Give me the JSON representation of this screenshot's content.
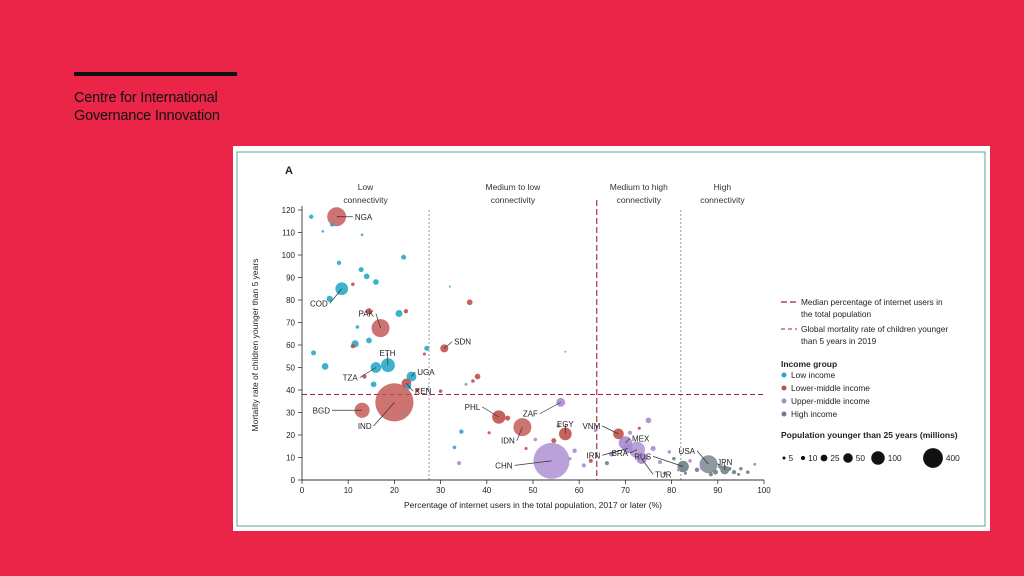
{
  "brand": {
    "line1": "Centre for International",
    "line2": "Governance Innovation"
  },
  "colors": {
    "background": "#ea2548",
    "low": "#29a9c9",
    "lower_middle": "#c0504d",
    "upper_middle": "#a98ad0",
    "high": "#6f7f86",
    "median_line": "#a01f44",
    "axis": "#333333"
  },
  "chart_data": {
    "type": "scatter",
    "panel_label": "A",
    "xlabel": "Percentage of internet users in the total population, 2017 or later (%)",
    "ylabel": "Mortality rate of children younger than 5 years",
    "xlim": [
      0,
      100
    ],
    "ylim": [
      0,
      120
    ],
    "xticks": [
      0,
      10,
      20,
      30,
      40,
      50,
      60,
      70,
      80,
      90,
      100
    ],
    "yticks": [
      0,
      10,
      20,
      30,
      40,
      50,
      60,
      70,
      80,
      90,
      100,
      110,
      120
    ],
    "connectivity_zones": [
      {
        "label_line1": "Low",
        "label_line2": "connectivity",
        "x_from": 0,
        "x_to": 27.5
      },
      {
        "label_line1": "Medium to low",
        "label_line2": "connectivity",
        "x_from": 27.5,
        "x_to": 63.8
      },
      {
        "label_line1": "Medium to high",
        "label_line2": "connectivity",
        "x_from": 63.8,
        "x_to": 82
      },
      {
        "label_line1": "High",
        "label_line2": "connectivity",
        "x_from": 82,
        "x_to": 100
      }
    ],
    "zone_boundaries": [
      27.5,
      82
    ],
    "median_internet_users": 63.8,
    "global_mortality_2019": 38,
    "legend": {
      "median_label_line1": "Median percentage of internet users in",
      "median_label_line2": "the total population",
      "mortality_label_line1": "Global mortality rate of children younger",
      "mortality_label_line2": "than 5 years in 2019",
      "income_title": "Income group",
      "income_groups": [
        {
          "key": "low",
          "label": "Low income"
        },
        {
          "key": "lower_middle",
          "label": "Lower-middle income"
        },
        {
          "key": "upper_middle",
          "label": "Upper-middle income"
        },
        {
          "key": "high",
          "label": "High income"
        }
      ],
      "size_title": "Population younger than 25 years (millions)",
      "size_values": [
        5,
        10,
        25,
        50,
        100,
        400
      ],
      "size_labels": [
        "5",
        "10",
        "25",
        "50",
        "100",
        "400"
      ]
    },
    "labeled_points": [
      {
        "label": "NGA",
        "x": 7.5,
        "y": 117,
        "group": "lower_middle",
        "pop": 110,
        "lx": 11,
        "ly": 117
      },
      {
        "label": "COD",
        "x": 8.6,
        "y": 85,
        "group": "low",
        "pop": 50,
        "lx": 6,
        "ly": 78.5
      },
      {
        "label": "PAK",
        "x": 17,
        "y": 67.5,
        "group": "lower_middle",
        "pop": 100,
        "lx": 16,
        "ly": 74
      },
      {
        "label": "ETH",
        "x": 18.6,
        "y": 51,
        "group": "low",
        "pop": 60,
        "lx": 18.5,
        "ly": 56.5
      },
      {
        "label": "TZA",
        "x": 16,
        "y": 50,
        "group": "low",
        "pop": 35,
        "lx": 12.5,
        "ly": 45.5
      },
      {
        "label": "UGA",
        "x": 23.7,
        "y": 46,
        "group": "low",
        "pop": 30,
        "lx": 24.5,
        "ly": 48
      },
      {
        "label": "KEN",
        "x": 22.6,
        "y": 43,
        "group": "lower_middle",
        "pop": 28,
        "lx": 24,
        "ly": 39.5
      },
      {
        "label": "BGD",
        "x": 13,
        "y": 31,
        "group": "lower_middle",
        "pop": 70,
        "lx": 6.5,
        "ly": 31
      },
      {
        "label": "IND",
        "x": 20,
        "y": 34.5,
        "group": "lower_middle",
        "pop": 450,
        "lx": 15.5,
        "ly": 24
      },
      {
        "label": "SDN",
        "x": 30.8,
        "y": 58.5,
        "group": "lower_middle",
        "pop": 20,
        "lx": 32.5,
        "ly": 61.5
      },
      {
        "label": "PHL",
        "x": 42.6,
        "y": 28,
        "group": "lower_middle",
        "pop": 55,
        "lx": 39,
        "ly": 32.5
      },
      {
        "label": "IDN",
        "x": 47.7,
        "y": 23.5,
        "group": "lower_middle",
        "pop": 100,
        "lx": 46.5,
        "ly": 17.5
      },
      {
        "label": "EGY",
        "x": 57,
        "y": 20.5,
        "group": "lower_middle",
        "pop": 50,
        "lx": 57,
        "ly": 25
      },
      {
        "label": "ZAF",
        "x": 56,
        "y": 34.5,
        "group": "upper_middle",
        "pop": 25,
        "lx": 51.5,
        "ly": 29.5
      },
      {
        "label": "CHN",
        "x": 54,
        "y": 8.5,
        "group": "upper_middle",
        "pop": 400,
        "lx": 46,
        "ly": 6.5
      },
      {
        "label": "VNM",
        "x": 68.5,
        "y": 20.5,
        "group": "lower_middle",
        "pop": 35,
        "lx": 65,
        "ly": 24
      },
      {
        "label": "MEX",
        "x": 70,
        "y": 16.5,
        "group": "upper_middle",
        "pop": 55,
        "lx": 71,
        "ly": 18.5
      },
      {
        "label": "IRN",
        "x": 70.5,
        "y": 14,
        "group": "upper_middle",
        "pop": 30,
        "lx": 65,
        "ly": 11
      },
      {
        "label": "BRA",
        "x": 72.5,
        "y": 13.5,
        "group": "upper_middle",
        "pop": 80,
        "lx": 71,
        "ly": 12
      },
      {
        "label": "RUS",
        "x": 82.5,
        "y": 6,
        "group": "high",
        "pop": 40,
        "lx": 76,
        "ly": 10.5
      },
      {
        "label": "TUR",
        "x": 73.5,
        "y": 9.5,
        "group": "upper_middle",
        "pop": 35,
        "lx": 76,
        "ly": 2.5
      },
      {
        "label": "USA",
        "x": 88,
        "y": 7,
        "group": "high",
        "pop": 100,
        "lx": 85.5,
        "ly": 13
      },
      {
        "label": "JPN",
        "x": 91.5,
        "y": 4.5,
        "group": "high",
        "pop": 25,
        "lx": 91.5,
        "ly": 8
      }
    ],
    "other_points": [
      {
        "x": 2,
        "y": 117,
        "group": "low",
        "pop": 6
      },
      {
        "x": 6.5,
        "y": 113.5,
        "group": "low",
        "pop": 5
      },
      {
        "x": 4.5,
        "y": 110.5,
        "group": "low",
        "pop": 2
      },
      {
        "x": 13,
        "y": 109,
        "group": "low",
        "pop": 2
      },
      {
        "x": 22,
        "y": 99,
        "group": "low",
        "pop": 8
      },
      {
        "x": 8,
        "y": 96.5,
        "group": "low",
        "pop": 6
      },
      {
        "x": 12.8,
        "y": 93.5,
        "group": "low",
        "pop": 8
      },
      {
        "x": 14,
        "y": 90.5,
        "group": "low",
        "pop": 10
      },
      {
        "x": 16,
        "y": 88,
        "group": "low",
        "pop": 10
      },
      {
        "x": 11,
        "y": 87,
        "group": "lower_middle",
        "pop": 4
      },
      {
        "x": 6,
        "y": 80.5,
        "group": "low",
        "pop": 12
      },
      {
        "x": 14.5,
        "y": 75,
        "group": "lower_middle",
        "pop": 12
      },
      {
        "x": 21,
        "y": 74,
        "group": "low",
        "pop": 15
      },
      {
        "x": 22.5,
        "y": 75,
        "group": "lower_middle",
        "pop": 6
      },
      {
        "x": 12,
        "y": 68,
        "group": "low",
        "pop": 4
      },
      {
        "x": 11.5,
        "y": 60.5,
        "group": "low",
        "pop": 16
      },
      {
        "x": 14.5,
        "y": 62,
        "group": "low",
        "pop": 10
      },
      {
        "x": 2.5,
        "y": 56.5,
        "group": "low",
        "pop": 8
      },
      {
        "x": 5,
        "y": 50.5,
        "group": "low",
        "pop": 14
      },
      {
        "x": 11,
        "y": 59.5,
        "group": "lower_middle",
        "pop": 6
      },
      {
        "x": 13.5,
        "y": 46,
        "group": "lower_middle",
        "pop": 6
      },
      {
        "x": 15.5,
        "y": 42.5,
        "group": "low",
        "pop": 10
      },
      {
        "x": 27,
        "y": 58.5,
        "group": "low",
        "pop": 8
      },
      {
        "x": 26.5,
        "y": 56,
        "group": "lower_middle",
        "pop": 3
      },
      {
        "x": 27.2,
        "y": 40.5,
        "group": "low",
        "pop": 2
      },
      {
        "x": 23,
        "y": 41.5,
        "group": "low",
        "pop": 10
      },
      {
        "x": 36.3,
        "y": 79,
        "group": "lower_middle",
        "pop": 10
      },
      {
        "x": 38,
        "y": 46,
        "group": "lower_middle",
        "pop": 10
      },
      {
        "x": 37,
        "y": 44,
        "group": "lower_middle",
        "pop": 4
      },
      {
        "x": 35.5,
        "y": 42.5,
        "group": "upper_middle",
        "pop": 3
      },
      {
        "x": 30,
        "y": 39.5,
        "group": "lower_middle",
        "pop": 4
      },
      {
        "x": 25,
        "y": 40,
        "group": "lower_middle",
        "pop": 5
      },
      {
        "x": 34.5,
        "y": 21.5,
        "group": "low",
        "pop": 6
      },
      {
        "x": 33,
        "y": 14.5,
        "group": "low",
        "pop": 4
      },
      {
        "x": 34,
        "y": 7.5,
        "group": "upper_middle",
        "pop": 5
      },
      {
        "x": 40.5,
        "y": 21,
        "group": "lower_middle",
        "pop": 3
      },
      {
        "x": 44.5,
        "y": 27.5,
        "group": "lower_middle",
        "pop": 8
      },
      {
        "x": 48.5,
        "y": 14,
        "group": "lower_middle",
        "pop": 3
      },
      {
        "x": 50.5,
        "y": 18,
        "group": "upper_middle",
        "pop": 4
      },
      {
        "x": 54.5,
        "y": 17.5,
        "group": "lower_middle",
        "pop": 8
      },
      {
        "x": 55.5,
        "y": 24,
        "group": "upper_middle",
        "pop": 4
      },
      {
        "x": 59,
        "y": 13,
        "group": "upper_middle",
        "pop": 6
      },
      {
        "x": 62.5,
        "y": 8.5,
        "group": "lower_middle",
        "pop": 5
      },
      {
        "x": 58,
        "y": 9.5,
        "group": "upper_middle",
        "pop": 3
      },
      {
        "x": 61,
        "y": 6.5,
        "group": "upper_middle",
        "pop": 5
      },
      {
        "x": 63.5,
        "y": 22,
        "group": "upper_middle",
        "pop": 3
      },
      {
        "x": 67,
        "y": 11.5,
        "group": "upper_middle",
        "pop": 8
      },
      {
        "x": 66,
        "y": 7.5,
        "group": "high",
        "pop": 5
      },
      {
        "x": 71,
        "y": 21,
        "group": "upper_middle",
        "pop": 5
      },
      {
        "x": 75,
        "y": 26.5,
        "group": "upper_middle",
        "pop": 10
      },
      {
        "x": 73,
        "y": 23,
        "group": "lower_middle",
        "pop": 3
      },
      {
        "x": 76,
        "y": 14,
        "group": "upper_middle",
        "pop": 8
      },
      {
        "x": 74.5,
        "y": 10,
        "group": "upper_middle",
        "pop": 6
      },
      {
        "x": 77.5,
        "y": 8,
        "group": "upper_middle",
        "pop": 5
      },
      {
        "x": 79.5,
        "y": 12.5,
        "group": "upper_middle",
        "pop": 4
      },
      {
        "x": 80.5,
        "y": 9.5,
        "group": "high",
        "pop": 4
      },
      {
        "x": 81.5,
        "y": 4.5,
        "group": "upper_middle",
        "pop": 3
      },
      {
        "x": 84,
        "y": 8.5,
        "group": "upper_middle",
        "pop": 4
      },
      {
        "x": 85.5,
        "y": 4.5,
        "group": "high",
        "pop": 6
      },
      {
        "x": 86.5,
        "y": 5.5,
        "group": "upper_middle",
        "pop": 5
      },
      {
        "x": 89.5,
        "y": 3.5,
        "group": "high",
        "pop": 8
      },
      {
        "x": 90.5,
        "y": 6,
        "group": "high",
        "pop": 6
      },
      {
        "x": 92.5,
        "y": 5,
        "group": "high",
        "pop": 5
      },
      {
        "x": 93.5,
        "y": 3.5,
        "group": "high",
        "pop": 6
      },
      {
        "x": 95,
        "y": 5,
        "group": "high",
        "pop": 4
      },
      {
        "x": 96.5,
        "y": 3.5,
        "group": "high",
        "pop": 4
      },
      {
        "x": 98,
        "y": 7,
        "group": "high",
        "pop": 2
      },
      {
        "x": 94.5,
        "y": 2.5,
        "group": "high",
        "pop": 3
      },
      {
        "x": 88.5,
        "y": 2.5,
        "group": "high",
        "pop": 5
      },
      {
        "x": 83,
        "y": 3,
        "group": "high",
        "pop": 3
      },
      {
        "x": 78.5,
        "y": 3,
        "group": "high",
        "pop": 3
      },
      {
        "x": 57,
        "y": 57,
        "group": "upper_middle",
        "pop": 1
      },
      {
        "x": 32,
        "y": 86,
        "group": "low",
        "pop": 1
      },
      {
        "x": 22,
        "y": 30,
        "group": "low",
        "pop": 1
      }
    ]
  }
}
